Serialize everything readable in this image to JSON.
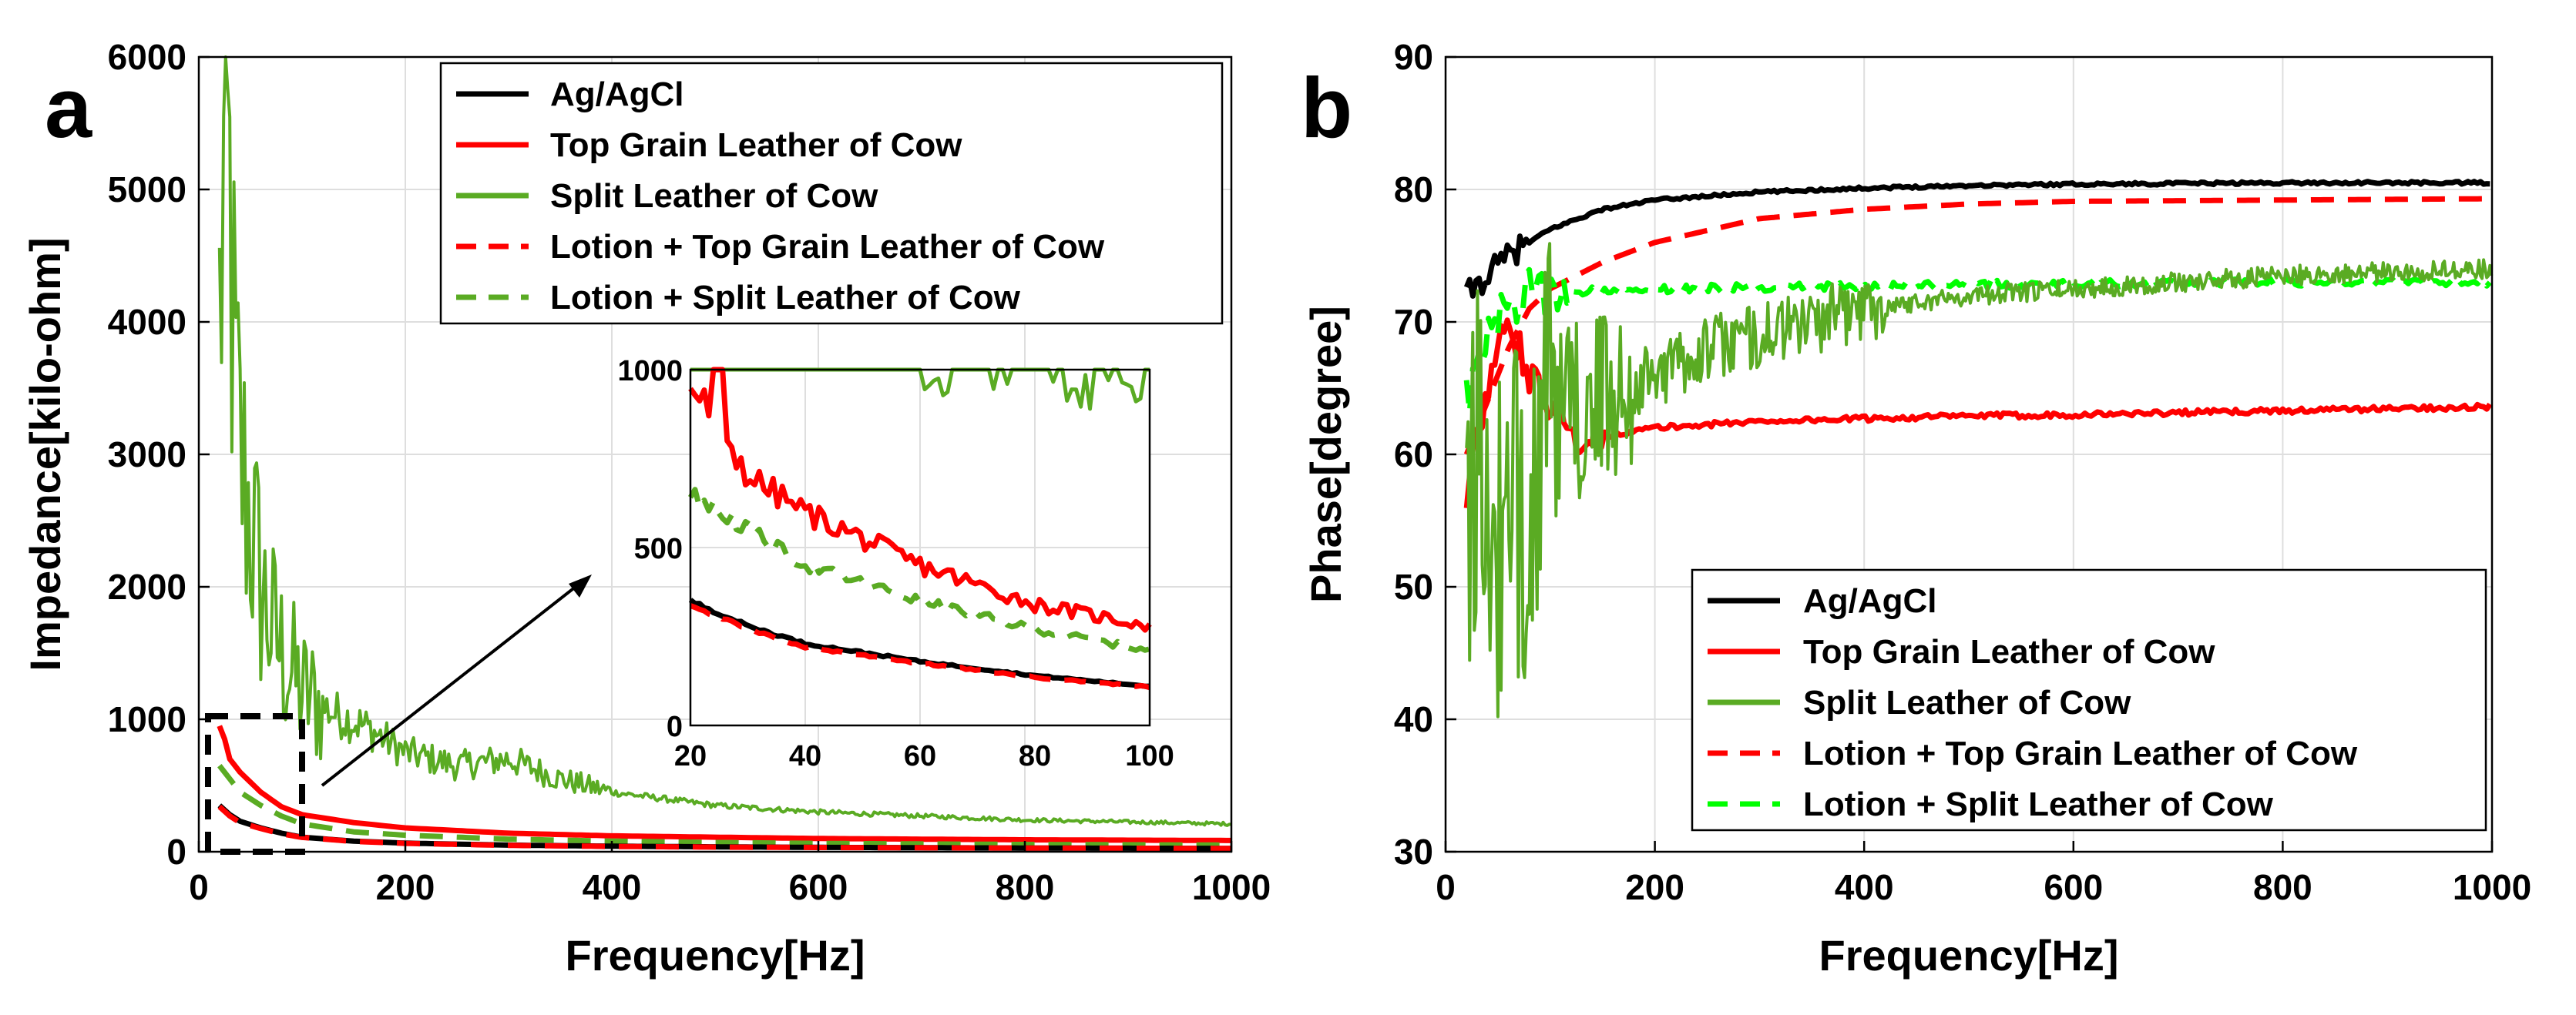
{
  "colors": {
    "black": "#000000",
    "red": "#ff0000",
    "green": "#5aab23",
    "bright_green": "#00ff00"
  },
  "panel_a": {
    "letter": "a",
    "legend": [
      {
        "label": "Ag/AgCl",
        "color": "#000000",
        "dash": false
      },
      {
        "label": "Top Grain Leather of Cow",
        "color": "#ff0000",
        "dash": false
      },
      {
        "label": "Split Leather of Cow",
        "color": "#5aab23",
        "dash": false
      },
      {
        "label": "Lotion + Top Grain Leather of Cow",
        "color": "#ff0000",
        "dash": true
      },
      {
        "label": "Lotion + Split Leather of Cow",
        "color": "#5aab23",
        "dash": true
      }
    ],
    "inset": {
      "xlim": [
        20,
        100
      ],
      "ylim": [
        0,
        1000
      ],
      "xticks": [
        "20",
        "40",
        "60",
        "80",
        "100"
      ],
      "yticks": [
        "0",
        "500",
        "1000"
      ]
    }
  },
  "panel_b": {
    "letter": "b",
    "legend": [
      {
        "label": "Ag/AgCl",
        "color": "#000000",
        "dash": false
      },
      {
        "label": "Top Grain Leather of Cow",
        "color": "#ff0000",
        "dash": false
      },
      {
        "label": "Split Leather of Cow",
        "color": "#5aab23",
        "dash": false
      },
      {
        "label": "Lotion + Top Grain Leather of Cow",
        "color": "#ff0000",
        "dash": true
      },
      {
        "label": "Lotion + Split Leather of Cow",
        "color": "#00ff00",
        "dash": true
      }
    ]
  },
  "chart_data": [
    {
      "type": "line",
      "title": "",
      "xlabel": "Frequency[Hz]",
      "ylabel": "Impedance[kilo-ohm]",
      "xlim": [
        0,
        1000
      ],
      "ylim": [
        0,
        6000
      ],
      "xticks": [
        "0",
        "200",
        "400",
        "600",
        "800",
        "1000"
      ],
      "yticks": [
        "0",
        "1000",
        "2000",
        "3000",
        "4000",
        "5000",
        "6000"
      ],
      "grid": true,
      "legend_position": "top-right",
      "series": [
        {
          "name": "Ag/AgCl",
          "style": "solid",
          "color": "#000000",
          "x": [
            20,
            30,
            40,
            60,
            80,
            100,
            150,
            200,
            300,
            400,
            500,
            600,
            800,
            1000
          ],
          "y": [
            350,
            280,
            230,
            180,
            140,
            110,
            80,
            65,
            50,
            42,
            37,
            33,
            28,
            25
          ]
        },
        {
          "name": "Top Grain Leather of Cow",
          "style": "solid",
          "color": "#ff0000",
          "x": [
            20,
            25,
            30,
            40,
            60,
            80,
            100,
            150,
            200,
            300,
            400,
            500,
            600,
            800,
            1000
          ],
          "y": [
            950,
            850,
            700,
            600,
            450,
            340,
            280,
            220,
            180,
            140,
            120,
            110,
            100,
            90,
            85
          ]
        },
        {
          "name": "Split Leather of Cow",
          "style": "solid noisy",
          "color": "#5aab23",
          "x": [
            20,
            25,
            30,
            35,
            40,
            50,
            60,
            70,
            80,
            100,
            130,
            160,
            200,
            250,
            300,
            350,
            400,
            500,
            600,
            800,
            1000
          ],
          "y": [
            4000,
            5200,
            4800,
            3500,
            3000,
            2500,
            2000,
            1700,
            1500,
            1200,
            1050,
            950,
            750,
            650,
            700,
            550,
            450,
            350,
            300,
            240,
            210
          ]
        },
        {
          "name": "Lotion + Top Grain Leather of Cow",
          "style": "dashed",
          "color": "#ff0000",
          "x": [
            20,
            30,
            40,
            60,
            80,
            100,
            150,
            200,
            300,
            400,
            500,
            600,
            800,
            1000
          ],
          "y": [
            340,
            270,
            220,
            175,
            135,
            108,
            78,
            63,
            48,
            40,
            35,
            32,
            28,
            25
          ]
        },
        {
          "name": "Lotion + Split Leather of Cow",
          "style": "dashed",
          "color": "#5aab23",
          "x": [
            20,
            30,
            40,
            60,
            80,
            100,
            150,
            200,
            300,
            400,
            500,
            600,
            800,
            1000
          ],
          "y": [
            650,
            550,
            450,
            350,
            270,
            210,
            150,
            125,
            95,
            80,
            70,
            63,
            55,
            50
          ]
        }
      ]
    },
    {
      "type": "line",
      "title": "",
      "xlabel": "Frequency[Hz]",
      "ylabel": "Phase[degree]",
      "xlim": [
        0,
        1000
      ],
      "ylim": [
        30,
        90
      ],
      "xticks": [
        "0",
        "200",
        "400",
        "600",
        "800",
        "1000"
      ],
      "yticks": [
        "30",
        "40",
        "50",
        "60",
        "70",
        "80",
        "90"
      ],
      "grid": true,
      "legend_position": "bottom-right",
      "series": [
        {
          "name": "Ag/AgCl",
          "style": "solid",
          "color": "#000000",
          "x": [
            20,
            40,
            60,
            80,
            100,
            150,
            200,
            300,
            400,
            500,
            600,
            800,
            1000
          ],
          "y": [
            72,
            73.5,
            75,
            76,
            77,
            78.5,
            79.2,
            79.8,
            80.1,
            80.3,
            80.4,
            80.5,
            80.5
          ]
        },
        {
          "name": "Top Grain Leather of Cow",
          "style": "solid",
          "color": "#ff0000",
          "x": [
            20,
            40,
            60,
            80,
            100,
            130,
            160,
            200,
            300,
            400,
            500,
            600,
            800,
            1000
          ],
          "y": [
            57,
            65,
            70,
            66,
            63,
            61.5,
            61.5,
            62,
            62.5,
            62.7,
            62.9,
            63,
            63.3,
            63.6
          ]
        },
        {
          "name": "Split Leather of Cow",
          "style": "solid noisy",
          "color": "#5aab23",
          "x": [
            20,
            40,
            60,
            80,
            100,
            150,
            200,
            250,
            300,
            400,
            500,
            600,
            800,
            1000
          ],
          "y": [
            60,
            55,
            50,
            60,
            62,
            64,
            66,
            68,
            69,
            71,
            72,
            72.5,
            73.5,
            74
          ]
        },
        {
          "name": "Lotion + Top Grain Leather of Cow",
          "style": "dashed",
          "color": "#ff0000",
          "x": [
            20,
            40,
            60,
            80,
            100,
            150,
            200,
            300,
            400,
            500,
            600,
            800,
            1000
          ],
          "y": [
            60,
            64,
            68,
            71,
            72.5,
            74.5,
            76,
            77.8,
            78.5,
            78.9,
            79.1,
            79.2,
            79.3
          ]
        },
        {
          "name": "Lotion + Split Leather of Cow",
          "style": "dashed",
          "color": "#00ff00",
          "x": [
            20,
            40,
            60,
            80,
            100,
            150,
            200,
            300,
            400,
            500,
            600,
            800,
            1000
          ],
          "y": [
            64,
            69,
            71,
            72,
            72.2,
            72.4,
            72.5,
            72.6,
            72.7,
            72.8,
            72.9,
            73,
            73
          ]
        }
      ]
    }
  ]
}
